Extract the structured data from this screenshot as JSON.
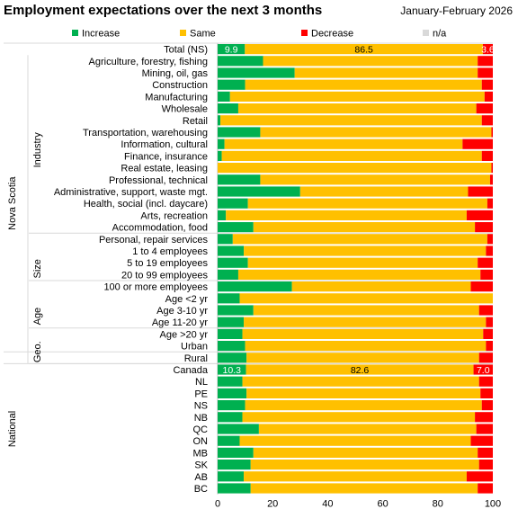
{
  "title": "Employment expectations over the next 3 months",
  "subtitle": "January-February  2026",
  "colors": {
    "increase": "#00b050",
    "same": "#ffc000",
    "decrease": "#ff0000",
    "na": "#d9d9d9",
    "divider": "#d9d9d9"
  },
  "chart_data": {
    "type": "bar",
    "orientation": "horizontal",
    "stacked": true,
    "xlim": [
      0,
      100
    ],
    "x_ticks": [
      0,
      20,
      40,
      60,
      80,
      100
    ],
    "legend_position": "top",
    "legend": [
      "Increase",
      "Same",
      "Decrease",
      "n/a"
    ],
    "categories": [
      "Total (NS)",
      "Agriculture, forestry, fishing",
      "Mining, oil, gas",
      "Construction",
      "Manufacturing",
      "Wholesale",
      "Retail",
      "Transportation, warehousing",
      "Information, cultural",
      "Finance, insurance",
      "Real estate, leasing",
      "Professional, technical",
      "Administrative, support, waste mgt.",
      "Health, social (incl. daycare)",
      "Arts, recreation",
      "Accommodation, food",
      "Personal, repair services",
      "1 to 4 employees",
      "5 to 19 employees",
      "20 to 99 employees",
      "100 or more employees",
      "Age <2 yr",
      "Age 3-10 yr",
      "Age 11-20 yr",
      "Age >20 yr",
      "Urban",
      "Rural",
      "Canada",
      "NL",
      "PE",
      "NS",
      "NB",
      "QC",
      "ON",
      "MB",
      "SK",
      "AB",
      "BC"
    ],
    "series": [
      {
        "name": "Increase",
        "values": [
          9.9,
          16.5,
          28,
          10,
          4.5,
          7.5,
          1,
          15.5,
          2.5,
          1.5,
          0,
          15.5,
          30,
          11,
          3,
          13,
          5.5,
          9.5,
          11,
          7.5,
          27,
          8,
          13,
          9.5,
          9,
          10,
          10.5,
          10.3,
          9,
          10.5,
          10,
          9,
          15,
          8,
          13,
          12,
          9.5,
          12
        ]
      },
      {
        "name": "Same",
        "values": [
          86.5,
          78,
          66.5,
          86,
          92.5,
          86.5,
          95,
          84,
          86.5,
          94.5,
          99.5,
          83.5,
          61,
          87,
          87.5,
          80.5,
          92.5,
          88,
          83.5,
          88,
          65,
          92,
          82,
          88,
          87.5,
          87.5,
          84.5,
          82.6,
          86,
          85,
          86,
          84.5,
          79,
          84,
          81.5,
          83,
          81,
          82.5
        ]
      },
      {
        "name": "Decrease",
        "values": [
          3.6,
          5.5,
          5.5,
          4,
          3,
          6,
          4,
          0.5,
          11,
          4,
          0.5,
          1,
          9,
          2,
          9.5,
          6.5,
          2,
          2.5,
          5.5,
          4.5,
          8,
          0,
          5,
          2.5,
          3.5,
          2.5,
          5,
          7.0,
          5,
          4.5,
          4,
          6.5,
          6,
          8,
          5.5,
          5,
          9.5,
          5.5
        ]
      },
      {
        "name": "n/a",
        "values": [
          0,
          0,
          0,
          0,
          0,
          0,
          0,
          0,
          0,
          0,
          0,
          0,
          0,
          0,
          0,
          0,
          0,
          0,
          0,
          0,
          0,
          0,
          0,
          0,
          0,
          0,
          0,
          0,
          0,
          0,
          0,
          0,
          0,
          0,
          0,
          0,
          0,
          0
        ]
      }
    ],
    "data_labels": [
      {
        "category": "Total (NS)",
        "values": [
          "9.9",
          "86.5",
          "3.6"
        ]
      },
      {
        "category": "Canada",
        "values": [
          "10.3",
          "82.6",
          "7.0"
        ]
      }
    ],
    "groups": [
      {
        "name": "Nova Scotia",
        "start": 0,
        "end": 26,
        "subgroups": [
          {
            "name": "Industry",
            "start": 1,
            "end": 16
          },
          {
            "name": "Size",
            "start": 17,
            "end": 20
          },
          {
            "name": "Age",
            "start": 21,
            "end": 24
          },
          {
            "name": "Geo.",
            "start": 25,
            "end": 26
          }
        ]
      },
      {
        "name": "National",
        "start": 27,
        "end": 37,
        "subgroups": []
      }
    ]
  }
}
